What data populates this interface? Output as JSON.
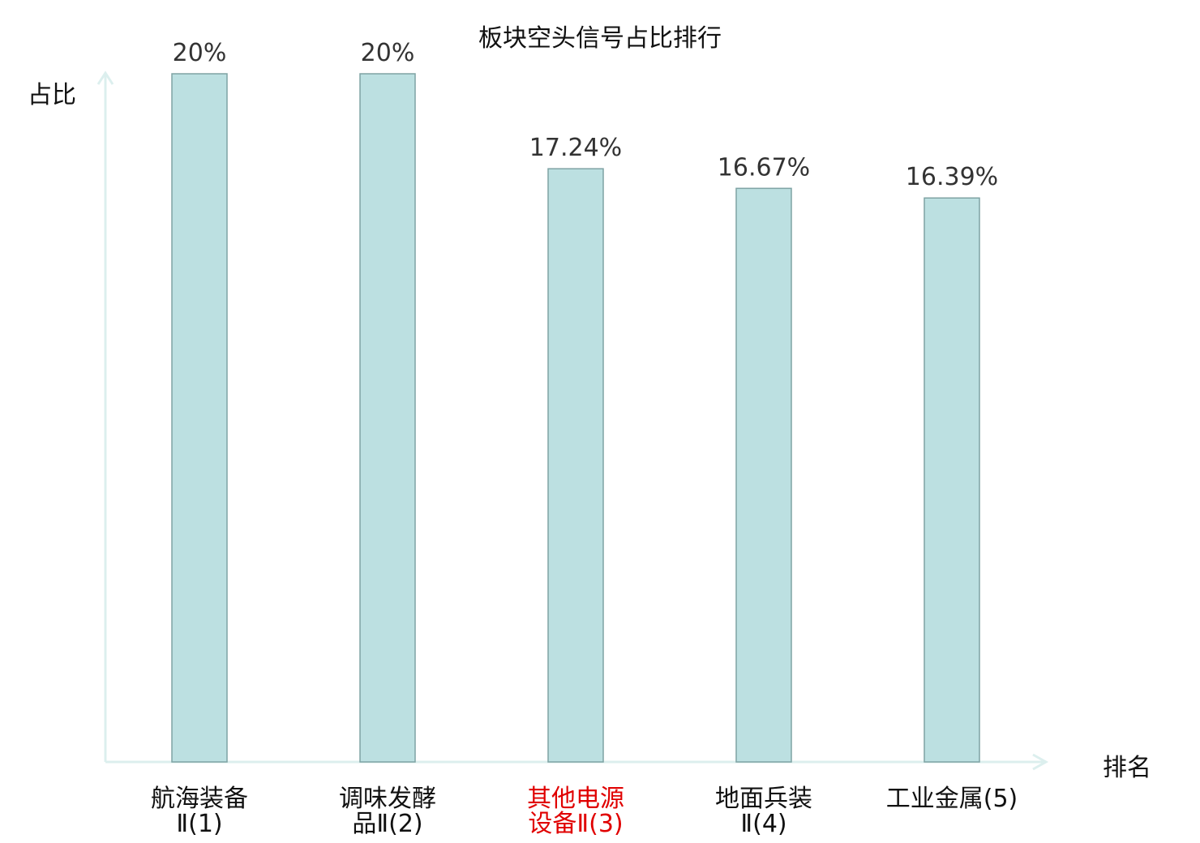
{
  "chart_data": {
    "type": "bar",
    "title": "板块空头信号占比排行",
    "xlabel": "排名",
    "ylabel": "占比",
    "ylim": [
      0,
      20
    ],
    "bar_color": "#bce0e1",
    "bar_stroke": "#7fa3a4",
    "axis_color": "#dcefee",
    "highlight_color": "#e00000",
    "categories": [
      {
        "line1": "航海装备",
        "line2": "Ⅱ(1)",
        "highlight": false
      },
      {
        "line1": "调味发酵",
        "line2": "品Ⅱ(2)",
        "highlight": false
      },
      {
        "line1": "其他电源",
        "line2": "设备Ⅱ(3)",
        "highlight": true
      },
      {
        "line1": "地面兵装",
        "line2": "Ⅱ(4)",
        "highlight": false
      },
      {
        "line1": "工业金属(5)",
        "line2": "",
        "highlight": false
      }
    ],
    "values": [
      20,
      20,
      17.24,
      16.67,
      16.39
    ],
    "value_labels": [
      "20%",
      "20%",
      "17.24%",
      "16.67%",
      "16.39%"
    ]
  }
}
